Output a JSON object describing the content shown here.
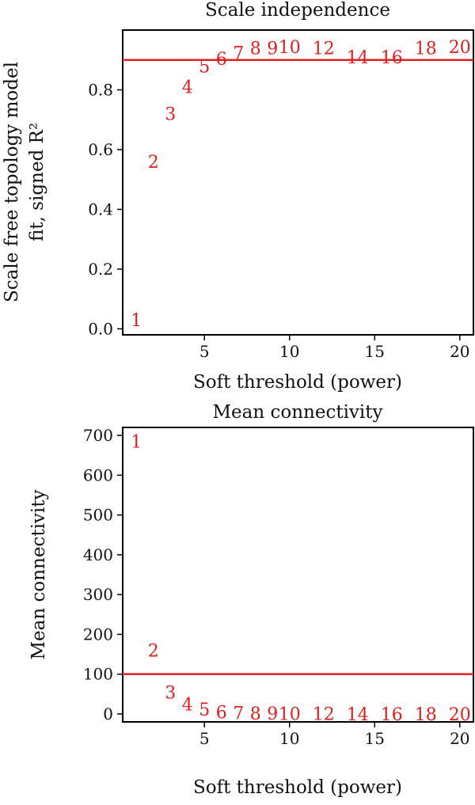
{
  "chart_data": [
    {
      "type": "scatter",
      "marker": "text",
      "title": "Scale independence",
      "xlabel": "Soft threshold (power)",
      "ylabel_lines": [
        "Scale free topology model",
        "fit, signed R²"
      ],
      "xlim": [
        0.2,
        20.8
      ],
      "ylim": [
        -0.02,
        1.0
      ],
      "xticks": [
        5,
        10,
        15,
        20
      ],
      "yticks": [
        0.0,
        0.2,
        0.4,
        0.6,
        0.8
      ],
      "ytick_labels": [
        "0.0",
        "0.2",
        "0.4",
        "0.6",
        "0.8"
      ],
      "hline": {
        "y": 0.9,
        "color": "#e02020"
      },
      "point_color": "#dd1f1f",
      "points": [
        {
          "label": "1",
          "x": 1,
          "y": 0.03
        },
        {
          "label": "2",
          "x": 2,
          "y": 0.56
        },
        {
          "label": "3",
          "x": 3,
          "y": 0.72
        },
        {
          "label": "4",
          "x": 4,
          "y": 0.81
        },
        {
          "label": "5",
          "x": 5,
          "y": 0.88
        },
        {
          "label": "6",
          "x": 6,
          "y": 0.905
        },
        {
          "label": "7",
          "x": 7,
          "y": 0.925
        },
        {
          "label": "8",
          "x": 8,
          "y": 0.94
        },
        {
          "label": "9",
          "x": 9,
          "y": 0.94
        },
        {
          "label": "10",
          "x": 10,
          "y": 0.945
        },
        {
          "label": "12",
          "x": 12,
          "y": 0.94
        },
        {
          "label": "14",
          "x": 14,
          "y": 0.91
        },
        {
          "label": "16",
          "x": 16,
          "y": 0.91
        },
        {
          "label": "18",
          "x": 18,
          "y": 0.94
        },
        {
          "label": "20",
          "x": 20,
          "y": 0.945
        }
      ]
    },
    {
      "type": "scatter",
      "marker": "text",
      "title": "Mean connectivity",
      "xlabel": "Soft threshold (power)",
      "ylabel_lines": [
        "Mean connectivity"
      ],
      "xlim": [
        0.2,
        20.8
      ],
      "ylim": [
        -20,
        720
      ],
      "xticks": [
        5,
        10,
        15,
        20
      ],
      "yticks": [
        0,
        100,
        200,
        300,
        400,
        500,
        600,
        700
      ],
      "ytick_labels": [
        "0",
        "100",
        "200",
        "300",
        "400",
        "500",
        "600",
        "700"
      ],
      "hline": {
        "y": 100,
        "color": "#e02020"
      },
      "point_color": "#dd1f1f",
      "points": [
        {
          "label": "1",
          "x": 1,
          "y": 685
        },
        {
          "label": "2",
          "x": 2,
          "y": 160
        },
        {
          "label": "3",
          "x": 3,
          "y": 55
        },
        {
          "label": "4",
          "x": 4,
          "y": 25
        },
        {
          "label": "5",
          "x": 5,
          "y": 12
        },
        {
          "label": "6",
          "x": 6,
          "y": 5
        },
        {
          "label": "7",
          "x": 7,
          "y": 3
        },
        {
          "label": "8",
          "x": 8,
          "y": 2
        },
        {
          "label": "9",
          "x": 9,
          "y": 1.5
        },
        {
          "label": "10",
          "x": 10,
          "y": 1
        },
        {
          "label": "12",
          "x": 12,
          "y": 0.5
        },
        {
          "label": "14",
          "x": 14,
          "y": 0.3
        },
        {
          "label": "16",
          "x": 16,
          "y": 0.2
        },
        {
          "label": "18",
          "x": 18,
          "y": 0.1
        },
        {
          "label": "20",
          "x": 20,
          "y": 0.1
        }
      ]
    }
  ]
}
